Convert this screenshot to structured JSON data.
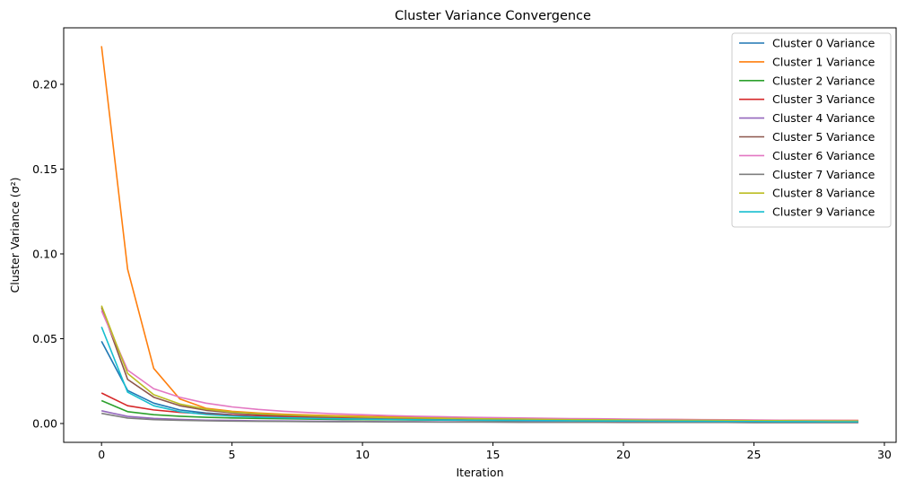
{
  "chart_data": {
    "type": "line",
    "title": "Cluster Variance Convergence",
    "xlabel": "Iteration",
    "ylabel": "Cluster Variance (σ²)",
    "xlim": [
      -1.45,
      30.45
    ],
    "ylim": [
      -0.0111,
      0.2333
    ],
    "xticks": [
      0,
      5,
      10,
      15,
      20,
      25,
      30
    ],
    "yticks": [
      0.0,
      0.05,
      0.1,
      0.15,
      0.2
    ],
    "ytick_labels": [
      "0.00",
      "0.05",
      "0.10",
      "0.15",
      "0.20"
    ],
    "grid": false,
    "legend_position": "top-right",
    "x": [
      0,
      1,
      2,
      3,
      4,
      5,
      6,
      7,
      8,
      9,
      10,
      11,
      12,
      13,
      14,
      15,
      16,
      17,
      18,
      19,
      20,
      21,
      22,
      23,
      24,
      25,
      26,
      27,
      28,
      29
    ],
    "series": [
      {
        "name": "Cluster 0 Variance",
        "color": "#1f77b4",
        "values": [
          0.0485,
          0.0195,
          0.012,
          0.008,
          0.0062,
          0.0052,
          0.0046,
          0.0041,
          0.0037,
          0.0034,
          0.0031,
          0.0029,
          0.0027,
          0.0025,
          0.0023,
          0.0022,
          0.0021,
          0.002,
          0.0019,
          0.0018,
          0.0017,
          0.0016,
          0.0015,
          0.0015,
          0.0014,
          0.0013,
          0.0013,
          0.0012,
          0.0012,
          0.0011
        ]
      },
      {
        "name": "Cluster 1 Variance",
        "color": "#ff7f0e",
        "values": [
          0.2225,
          0.091,
          0.0325,
          0.0145,
          0.009,
          0.0072,
          0.0062,
          0.0055,
          0.005,
          0.0046,
          0.0043,
          0.004,
          0.0037,
          0.0035,
          0.0033,
          0.0031,
          0.003,
          0.0028,
          0.0027,
          0.0026,
          0.0025,
          0.0024,
          0.0023,
          0.0022,
          0.0021,
          0.002,
          0.002,
          0.0019,
          0.0018,
          0.0018
        ]
      },
      {
        "name": "Cluster 2 Variance",
        "color": "#2ca02c",
        "values": [
          0.0135,
          0.007,
          0.0052,
          0.0043,
          0.0037,
          0.0033,
          0.003,
          0.0028,
          0.0026,
          0.0024,
          0.0023,
          0.0022,
          0.0021,
          0.002,
          0.0019,
          0.0018,
          0.0017,
          0.0016,
          0.0016,
          0.0015,
          0.0014,
          0.0014,
          0.0013,
          0.0013,
          0.0012,
          0.0012,
          0.0011,
          0.0011,
          0.001,
          0.001
        ]
      },
      {
        "name": "Cluster 3 Variance",
        "color": "#d62728",
        "values": [
          0.018,
          0.0105,
          0.008,
          0.0066,
          0.0057,
          0.005,
          0.0045,
          0.0041,
          0.0037,
          0.0034,
          0.0032,
          0.003,
          0.0028,
          0.0026,
          0.0025,
          0.0024,
          0.0023,
          0.0022,
          0.0021,
          0.002,
          0.0019,
          0.0018,
          0.0017,
          0.0017,
          0.0016,
          0.0015,
          0.0015,
          0.0014,
          0.0014,
          0.0013
        ]
      },
      {
        "name": "Cluster 4 Variance",
        "color": "#9467bd",
        "values": [
          0.0075,
          0.0042,
          0.003,
          0.0024,
          0.002,
          0.0018,
          0.0016,
          0.0015,
          0.0014,
          0.0013,
          0.0012,
          0.0011,
          0.0011,
          0.001,
          0.001,
          0.0009,
          0.0009,
          0.0009,
          0.0008,
          0.0008,
          0.0008,
          0.0007,
          0.0007,
          0.0007,
          0.0007,
          0.0006,
          0.0006,
          0.0006,
          0.0006,
          0.0006
        ]
      },
      {
        "name": "Cluster 5 Variance",
        "color": "#8c564b",
        "values": [
          0.0685,
          0.026,
          0.0155,
          0.0105,
          0.0078,
          0.0063,
          0.0054,
          0.0048,
          0.0043,
          0.0039,
          0.0036,
          0.0033,
          0.0031,
          0.0029,
          0.0027,
          0.0026,
          0.0024,
          0.0023,
          0.0022,
          0.0021,
          0.002,
          0.0019,
          0.0018,
          0.0018,
          0.0017,
          0.0016,
          0.0016,
          0.0015,
          0.0015,
          0.0014
        ]
      },
      {
        "name": "Cluster 6 Variance",
        "color": "#e377c2",
        "values": [
          0.0665,
          0.0315,
          0.0205,
          0.0155,
          0.012,
          0.0098,
          0.0083,
          0.0072,
          0.0064,
          0.0057,
          0.0052,
          0.0047,
          0.0043,
          0.004,
          0.0037,
          0.0035,
          0.0033,
          0.0031,
          0.0029,
          0.0028,
          0.0026,
          0.0025,
          0.0024,
          0.0023,
          0.0022,
          0.0021,
          0.002,
          0.0019,
          0.0019,
          0.0018
        ]
      },
      {
        "name": "Cluster 7 Variance",
        "color": "#7f7f7f",
        "values": [
          0.006,
          0.0032,
          0.0023,
          0.0019,
          0.0016,
          0.0014,
          0.0013,
          0.0012,
          0.0011,
          0.001,
          0.001,
          0.0009,
          0.0009,
          0.0008,
          0.0008,
          0.0008,
          0.0007,
          0.0007,
          0.0007,
          0.0007,
          0.0006,
          0.0006,
          0.0006,
          0.0006,
          0.0006,
          0.0005,
          0.0005,
          0.0005,
          0.0005,
          0.0005
        ]
      },
      {
        "name": "Cluster 8 Variance",
        "color": "#bcbd22",
        "values": [
          0.0695,
          0.0295,
          0.017,
          0.0115,
          0.0085,
          0.0068,
          0.0058,
          0.0051,
          0.0046,
          0.0042,
          0.0038,
          0.0035,
          0.0033,
          0.0031,
          0.0029,
          0.0027,
          0.0026,
          0.0024,
          0.0023,
          0.0022,
          0.0021,
          0.002,
          0.0019,
          0.0019,
          0.0018,
          0.0017,
          0.0017,
          0.0016,
          0.0016,
          0.0015
        ]
      },
      {
        "name": "Cluster 9 Variance",
        "color": "#17becf",
        "values": [
          0.057,
          0.0185,
          0.0105,
          0.007,
          0.0053,
          0.0044,
          0.0038,
          0.0034,
          0.0031,
          0.0028,
          0.0026,
          0.0024,
          0.0022,
          0.0021,
          0.002,
          0.0019,
          0.0018,
          0.0017,
          0.0016,
          0.0015,
          0.0015,
          0.0014,
          0.0013,
          0.0013,
          0.0012,
          0.0012,
          0.0011,
          0.0011,
          0.001,
          0.001
        ]
      }
    ]
  }
}
